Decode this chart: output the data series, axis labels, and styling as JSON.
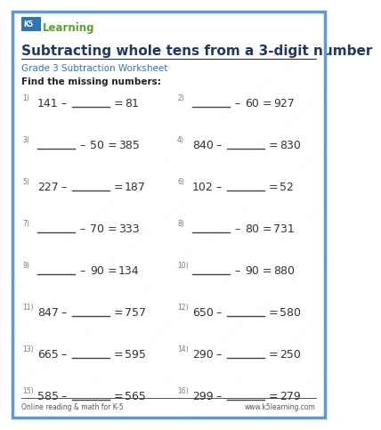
{
  "title": "Subtracting whole tens from a 3-digit number",
  "subtitle": "Grade 3 Subtraction Worksheet",
  "instruction": "Find the missing numbers:",
  "border_color": "#5b9bd5",
  "title_color": "#1f3864",
  "subtitle_color": "#2e75b6",
  "instruction_color": "#222222",
  "problems": [
    {
      "num": "1)",
      "expr": "141 – ___ = 81",
      "blank_left": false
    },
    {
      "num": "2)",
      "expr": "___ – 60 = 927",
      "blank_left": true
    },
    {
      "num": "3)",
      "expr": "___ – 50 = 385",
      "blank_left": true
    },
    {
      "num": "4)",
      "expr": "840 – ___ = 830",
      "blank_left": false
    },
    {
      "num": "5)",
      "expr": "227 – ___ = 187",
      "blank_left": false
    },
    {
      "num": "6)",
      "expr": "102 – ___ = 52",
      "blank_left": false
    },
    {
      "num": "7)",
      "expr": "___ – 70 = 333",
      "blank_left": true
    },
    {
      "num": "8)",
      "expr": "___ – 80 = 731",
      "blank_left": true
    },
    {
      "num": "9)",
      "expr": "___ – 90 = 134",
      "blank_left": true
    },
    {
      "num": "10)",
      "expr": "___ – 90 = 880",
      "blank_left": true
    },
    {
      "num": "11)",
      "expr": "847 – ___ = 757",
      "blank_left": false
    },
    {
      "num": "12)",
      "expr": "650 – ___ = 580",
      "blank_left": false
    },
    {
      "num": "13)",
      "expr": "665 – ___ = 595",
      "blank_left": false
    },
    {
      "num": "14)",
      "expr": "290 – ___ = 250",
      "blank_left": false
    },
    {
      "num": "15)",
      "expr": "585 – ___ = 565",
      "blank_left": false
    },
    {
      "num": "16)",
      "expr": "299 – ___ = 279",
      "blank_left": false
    }
  ],
  "problems_data": [
    {
      "num": "1)",
      "left": "141",
      "blank_pos": "right",
      "sub_val": "",
      "result": "81"
    },
    {
      "num": "2)",
      "left": "",
      "blank_pos": "left",
      "sub_val": "60",
      "result": "927"
    },
    {
      "num": "3)",
      "left": "",
      "blank_pos": "left",
      "sub_val": "50",
      "result": "385"
    },
    {
      "num": "4)",
      "left": "840",
      "blank_pos": "right",
      "sub_val": "",
      "result": "830"
    },
    {
      "num": "5)",
      "left": "227",
      "blank_pos": "right",
      "sub_val": "",
      "result": "187"
    },
    {
      "num": "6)",
      "left": "102",
      "blank_pos": "right",
      "sub_val": "",
      "result": "52"
    },
    {
      "num": "7)",
      "left": "",
      "blank_pos": "left",
      "sub_val": "70",
      "result": "333"
    },
    {
      "num": "8)",
      "left": "",
      "blank_pos": "left",
      "sub_val": "80",
      "result": "731"
    },
    {
      "num": "9)",
      "left": "",
      "blank_pos": "left",
      "sub_val": "90",
      "result": "134"
    },
    {
      "num": "10)",
      "left": "",
      "blank_pos": "left",
      "sub_val": "90",
      "result": "880"
    },
    {
      "num": "11)",
      "left": "847",
      "blank_pos": "right",
      "sub_val": "",
      "result": "757"
    },
    {
      "num": "12)",
      "left": "650",
      "blank_pos": "right",
      "sub_val": "",
      "result": "580"
    },
    {
      "num": "13)",
      "left": "665",
      "blank_pos": "right",
      "sub_val": "",
      "result": "595"
    },
    {
      "num": "14)",
      "left": "290",
      "blank_pos": "right",
      "sub_val": "",
      "result": "250"
    },
    {
      "num": "15)",
      "left": "585",
      "blank_pos": "right",
      "sub_val": "",
      "result": "565"
    },
    {
      "num": "16)",
      "left": "299",
      "blank_pos": "right",
      "sub_val": "",
      "result": "279"
    }
  ],
  "footer_left": "Online reading & math for K-5",
  "footer_right": "www.k5learning.com",
  "bg_color": "#ffffff",
  "text_color": "#333333"
}
